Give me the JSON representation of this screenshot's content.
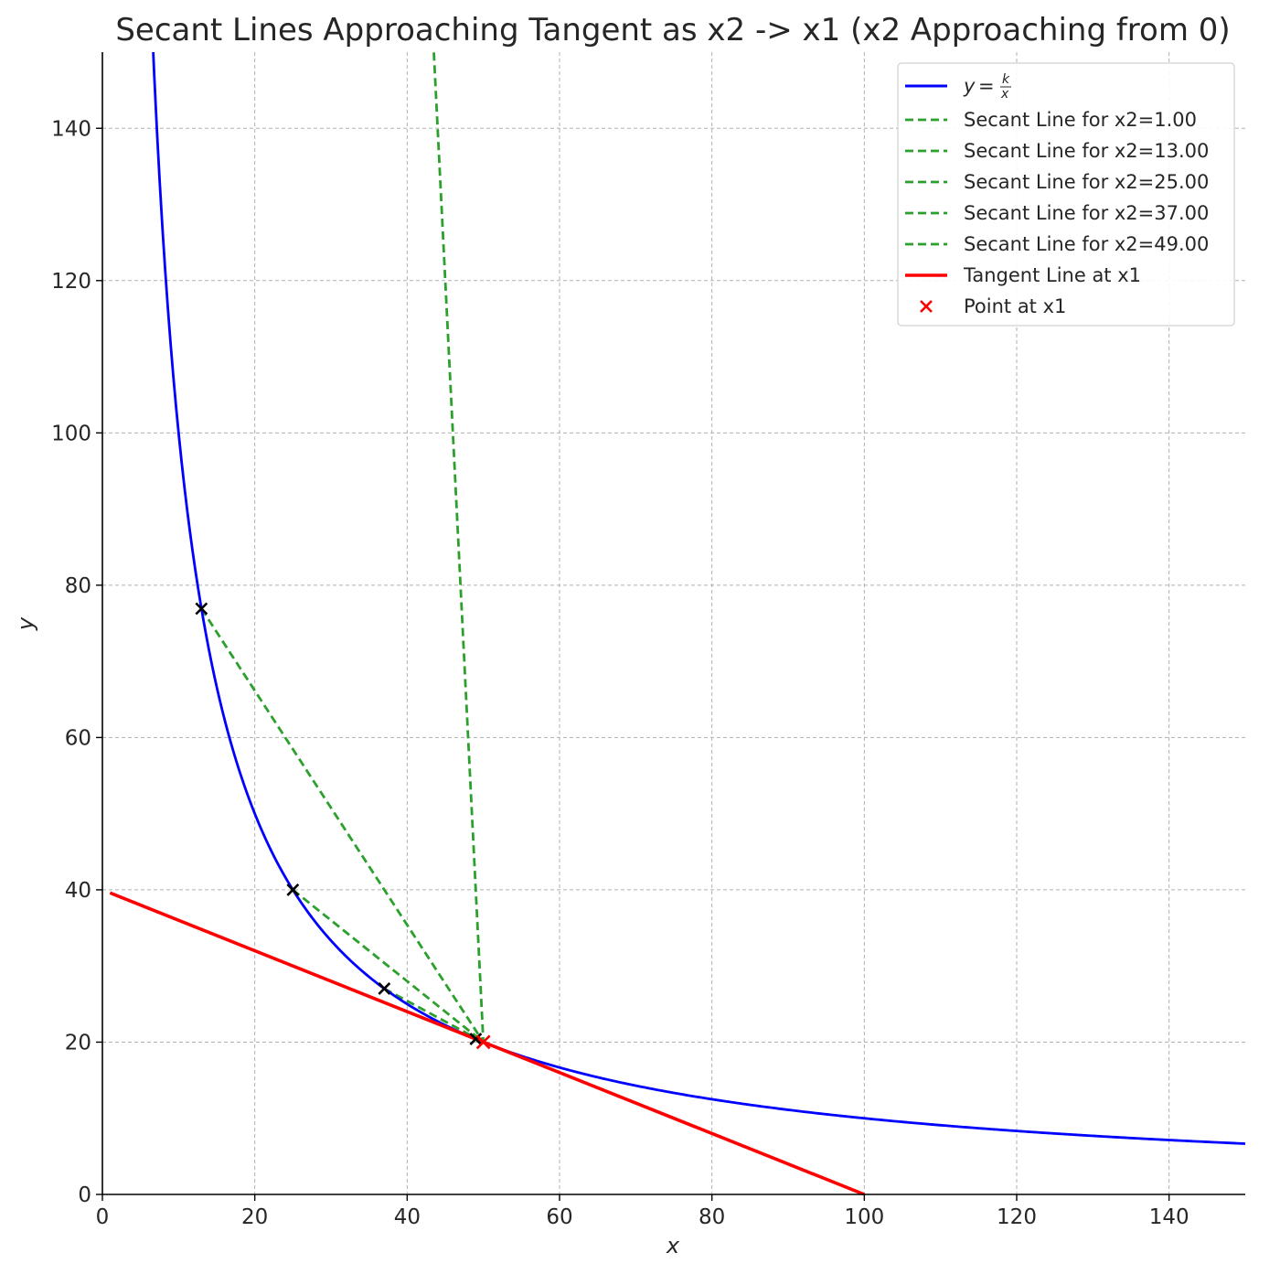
{
  "chart_data": {
    "type": "line",
    "title": "Secant Lines Approaching Tangent as x2 -> x1 (x2 Approaching from 0)",
    "xlabel": "x",
    "ylabel": "y",
    "xlim": [
      0,
      150
    ],
    "ylim": [
      0,
      150
    ],
    "x_ticks": [
      0,
      20,
      40,
      60,
      80,
      100,
      120,
      140
    ],
    "y_ticks": [
      0,
      20,
      40,
      60,
      80,
      100,
      120,
      140
    ],
    "grid": true,
    "legend_position": "top-right",
    "k": 1000,
    "x1": 50,
    "curve": {
      "name": "y = k/x",
      "legend_k": "k",
      "legend_x": "x",
      "color": "#0000ff"
    },
    "secants": [
      {
        "name": "Secant Line for x2=1.00",
        "x2": 1.0,
        "color": "#2ca02c"
      },
      {
        "name": "Secant Line for x2=13.00",
        "x2": 13.0,
        "color": "#2ca02c"
      },
      {
        "name": "Secant Line for x2=25.00",
        "x2": 25.0,
        "color": "#2ca02c"
      },
      {
        "name": "Secant Line for x2=37.00",
        "x2": 37.0,
        "color": "#2ca02c"
      },
      {
        "name": "Secant Line for x2=49.00",
        "x2": 49.0,
        "color": "#2ca02c"
      }
    ],
    "tangent": {
      "name": "Tangent Line at x1",
      "color": "#ff0000",
      "slope": -0.4,
      "intercept": 40
    },
    "point": {
      "name": "Point at x1",
      "x": 50,
      "y": 20,
      "color": "#ff0000"
    },
    "secant_points": [
      {
        "x": 13,
        "y": 76.92
      },
      {
        "x": 25,
        "y": 40
      },
      {
        "x": 37,
        "y": 27.03
      },
      {
        "x": 49,
        "y": 20.41
      }
    ]
  }
}
